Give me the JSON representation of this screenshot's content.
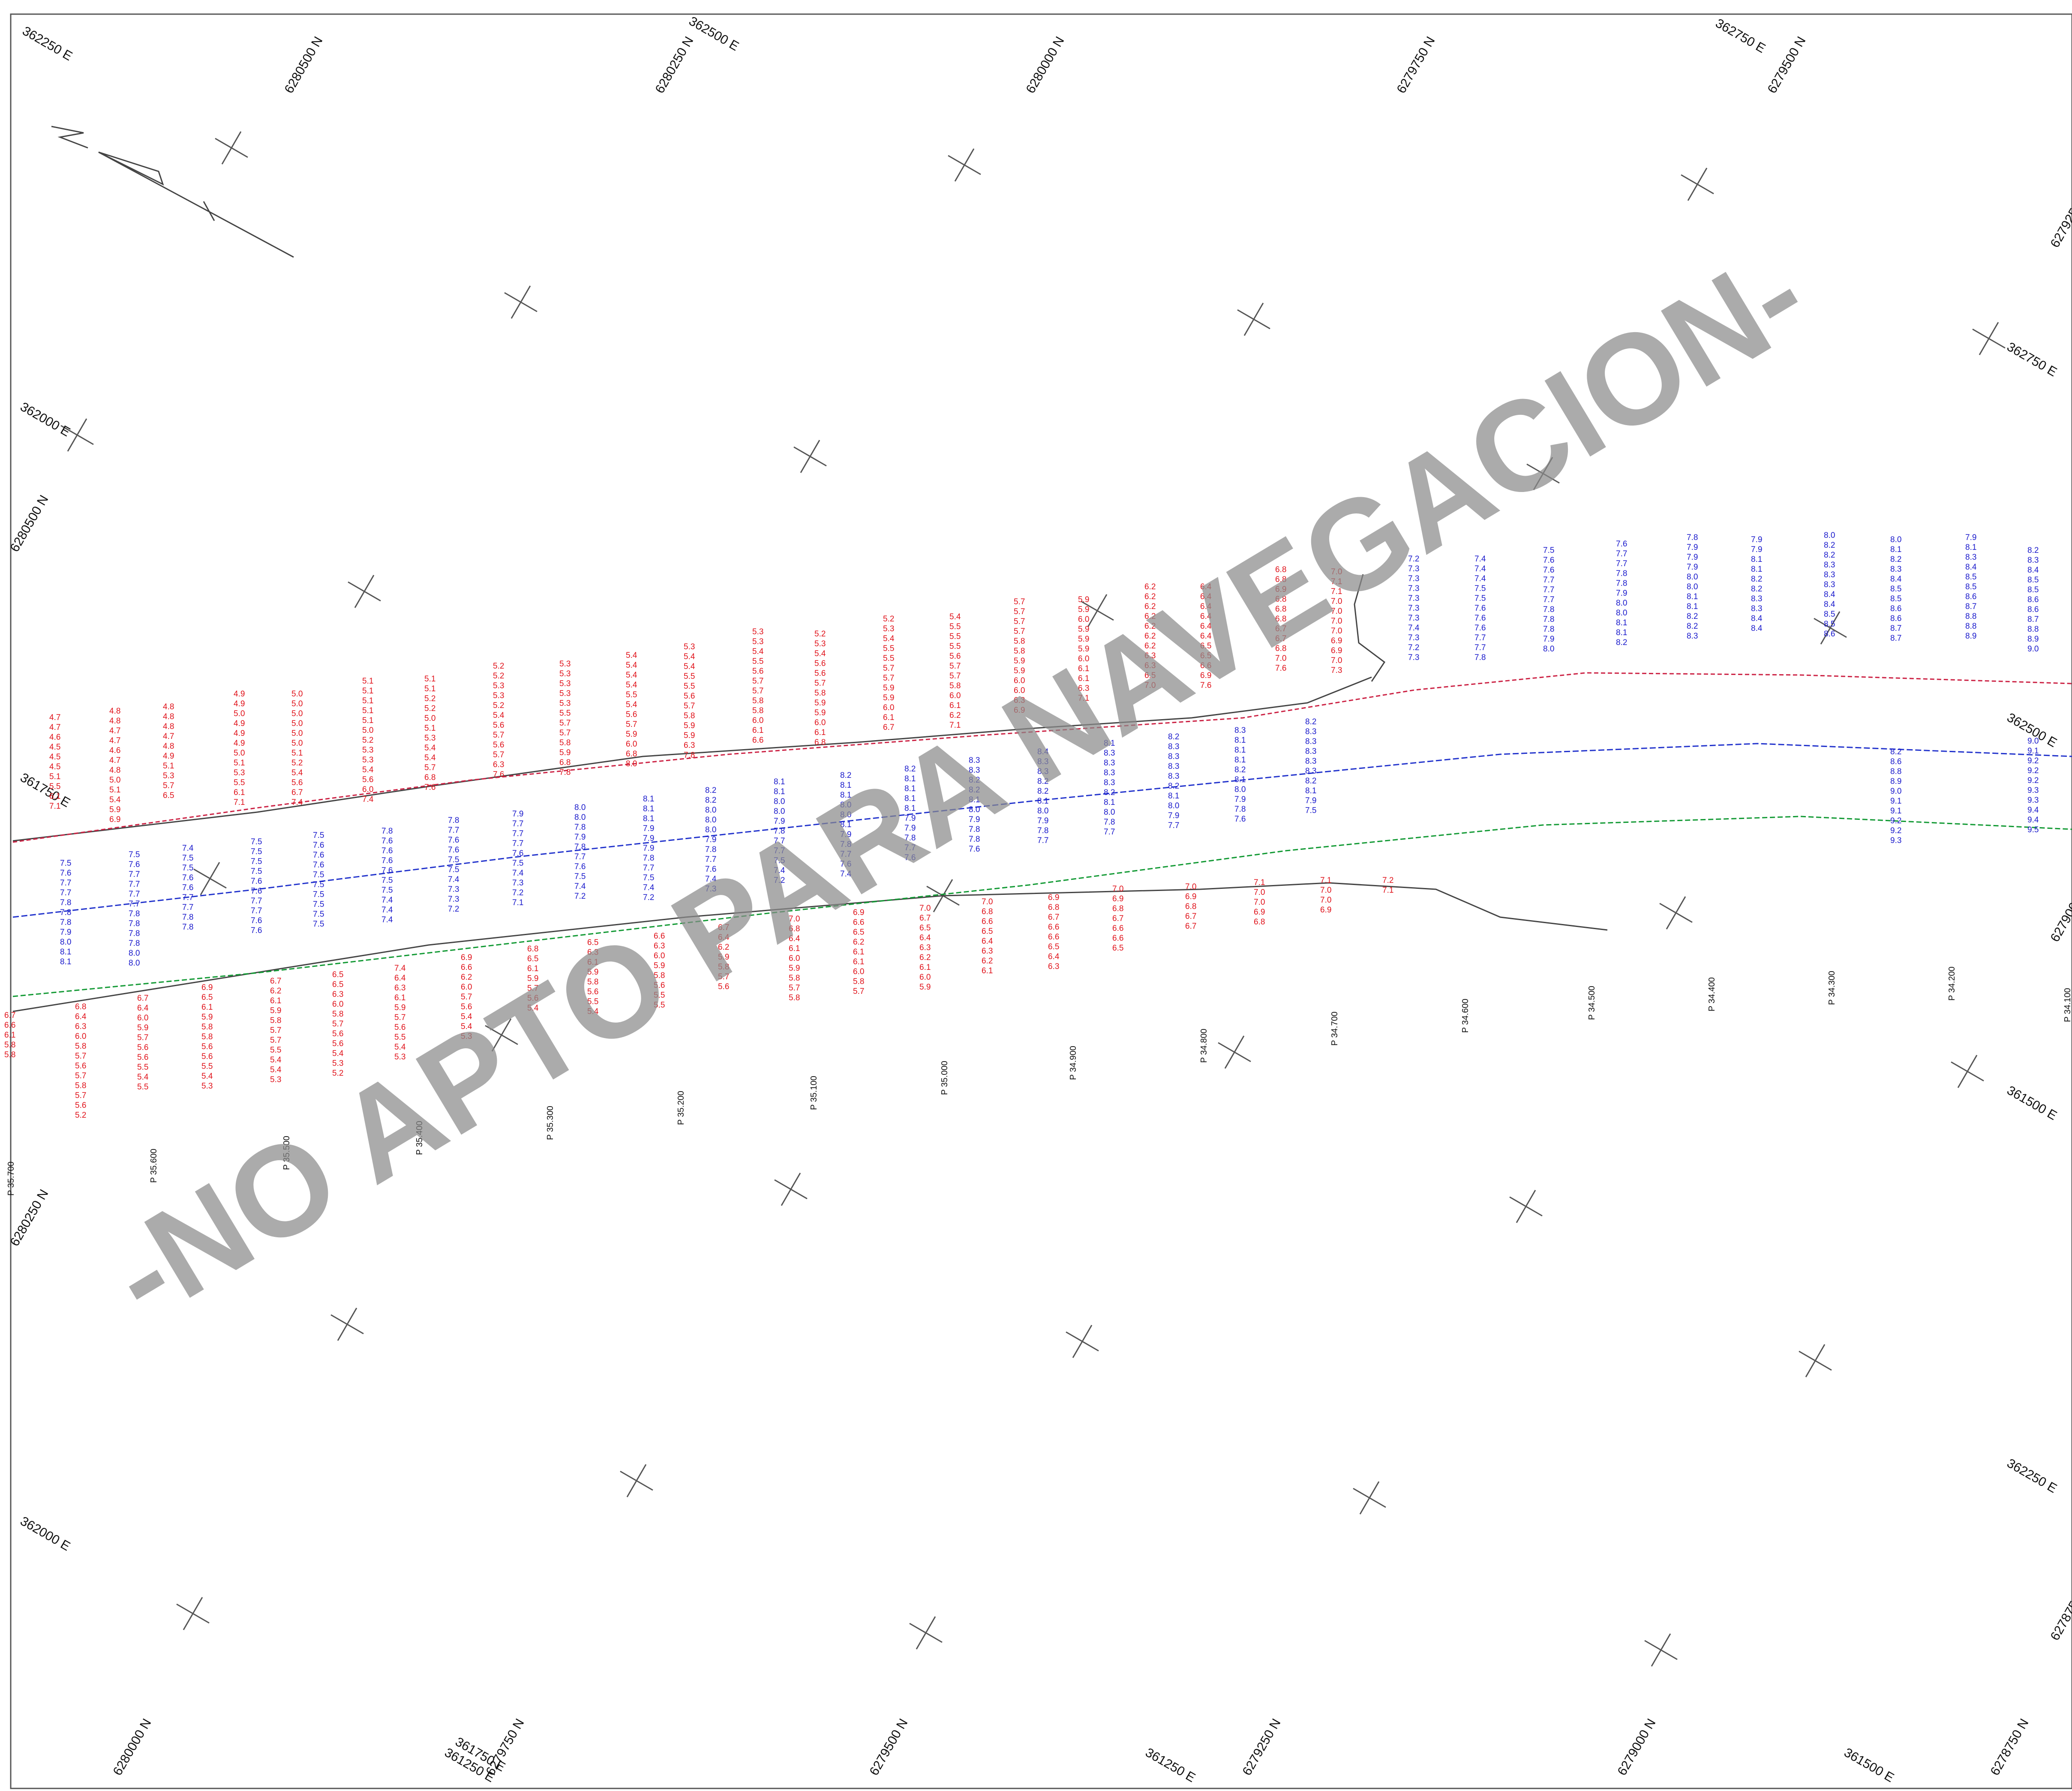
{
  "grid_labels": {
    "easting": [
      "362250 E",
      "362500 E",
      "362750 E",
      "362000 E",
      "362750 E",
      "361750 E",
      "362500 E",
      "361500 E",
      "362250 E",
      "362000 E",
      "361250 E",
      "361250 E",
      "361500 E",
      "361750 E"
    ],
    "northing": [
      "6280500 N",
      "6280250 N",
      "6280000 N",
      "6279750 N",
      "6279500 N",
      "6279250 N",
      "6280500 N",
      "6280250 N",
      "6279000 N",
      "6278750 N",
      "6280000 N",
      "6279750 N",
      "6279500 N",
      "6279250 N",
      "6279000 N",
      "6278750 N"
    ]
  },
  "pk_labels": [
    "P 35.700",
    "P 35.600",
    "P 35.500",
    "P 35.400",
    "P 35.300",
    "P 35.200",
    "P 35.100",
    "P 35.000",
    "P 34.900",
    "P 34.800",
    "P 34.700",
    "P 34.600",
    "P 34.500",
    "P 34.400",
    "P 34.300",
    "P 34.200",
    "P 34.100"
  ],
  "soundings": {
    "red_columns": [
      [
        "4.7",
        "4.7",
        "4.6",
        "4.5",
        "4.5",
        "4.5",
        "5.1",
        "5.5",
        "6.1",
        "7.1"
      ],
      [
        "4.8",
        "4.8",
        "4.7",
        "4.7",
        "4.6",
        "4.7",
        "4.8",
        "5.0",
        "5.1",
        "5.4",
        "5.9",
        "6.9"
      ],
      [
        "4.8",
        "4.8",
        "4.8",
        "4.7",
        "4.8",
        "4.9",
        "5.1",
        "5.3",
        "5.7",
        "6.5"
      ],
      [
        "4.9",
        "4.9",
        "5.0",
        "4.9",
        "4.9",
        "4.9",
        "5.0",
        "5.1",
        "5.3",
        "5.5",
        "6.1",
        "7.1"
      ],
      [
        "5.0",
        "5.0",
        "5.0",
        "5.0",
        "5.0",
        "5.0",
        "5.1",
        "5.2",
        "5.4",
        "5.6",
        "6.7",
        "7.4"
      ],
      [
        "5.1",
        "5.1",
        "5.1",
        "5.1",
        "5.1",
        "5.0",
        "5.2",
        "5.3",
        "5.3",
        "5.4",
        "5.6",
        "6.0",
        "7.4"
      ],
      [
        "5.1",
        "5.1",
        "5.2",
        "5.2",
        "5.0",
        "5.1",
        "5.3",
        "5.4",
        "5.4",
        "5.7",
        "6.8",
        "7.6"
      ],
      [
        "5.2",
        "5.2",
        "5.3",
        "5.3",
        "5.2",
        "5.4",
        "5.6",
        "5.7",
        "5.6",
        "5.7",
        "6.3",
        "7.6"
      ],
      [
        "5.3",
        "5.3",
        "5.3",
        "5.3",
        "5.3",
        "5.5",
        "5.7",
        "5.7",
        "5.8",
        "5.9",
        "6.8",
        "7.8"
      ],
      [
        "5.4",
        "5.4",
        "5.4",
        "5.4",
        "5.5",
        "5.4",
        "5.6",
        "5.7",
        "5.9",
        "6.0",
        "6.8",
        "8.0"
      ],
      [
        "5.3",
        "5.4",
        "5.4",
        "5.5",
        "5.5",
        "5.6",
        "5.7",
        "5.8",
        "5.9",
        "5.9",
        "6.3",
        "7.8"
      ],
      [
        "5.3",
        "5.3",
        "5.4",
        "5.5",
        "5.6",
        "5.7",
        "5.7",
        "5.8",
        "5.8",
        "6.0",
        "6.1",
        "6.6"
      ],
      [
        "5.2",
        "5.3",
        "5.4",
        "5.6",
        "5.6",
        "5.7",
        "5.8",
        "5.9",
        "5.9",
        "6.0",
        "6.1",
        "6.8"
      ],
      [
        "5.2",
        "5.3",
        "5.4",
        "5.5",
        "5.5",
        "5.7",
        "5.7",
        "5.9",
        "5.9",
        "6.0",
        "6.1",
        "6.7"
      ],
      [
        "5.4",
        "5.5",
        "5.5",
        "5.5",
        "5.6",
        "5.7",
        "5.7",
        "5.8",
        "6.0",
        "6.1",
        "6.2",
        "7.1"
      ],
      [
        "5.7",
        "5.7",
        "5.7",
        "5.7",
        "5.8",
        "5.8",
        "5.9",
        "5.9",
        "6.0",
        "6.0",
        "6.3",
        "6.9"
      ],
      [
        "5.9",
        "5.9",
        "6.0",
        "5.9",
        "5.9",
        "5.9",
        "6.0",
        "6.1",
        "6.1",
        "6.3",
        "7.1"
      ],
      [
        "6.2",
        "6.2",
        "6.2",
        "6.2",
        "6.2",
        "6.2",
        "6.2",
        "6.3",
        "6.3",
        "6.5",
        "7.0"
      ],
      [
        "6.4",
        "6.4",
        "6.4",
        "6.4",
        "6.4",
        "6.4",
        "6.5",
        "6.5",
        "6.6",
        "6.9",
        "7.6"
      ],
      [
        "6.8",
        "6.8",
        "6.9",
        "6.8",
        "6.8",
        "6.8",
        "6.7",
        "6.7",
        "6.8",
        "7.0",
        "7.6"
      ],
      [
        "7.0",
        "7.1",
        "7.1",
        "7.0",
        "7.0",
        "7.0",
        "7.0",
        "6.9",
        "6.9",
        "7.0",
        "7.3"
      ],
      [
        "6.7",
        "6.6",
        "6.1",
        "5.8",
        "5.8"
      ],
      [
        "6.8",
        "6.4",
        "6.3",
        "6.0",
        "5.8",
        "5.7",
        "5.6",
        "5.7",
        "5.8",
        "5.7",
        "5.6",
        "5.2"
      ],
      [
        "6.7",
        "6.4",
        "6.0",
        "5.9",
        "5.7",
        "5.6",
        "5.6",
        "5.5",
        "5.4",
        "5.5"
      ],
      [
        "6.9",
        "6.5",
        "6.1",
        "5.9",
        "5.8",
        "5.8",
        "5.6",
        "5.6",
        "5.5",
        "5.4",
        "5.3"
      ],
      [
        "6.7",
        "6.2",
        "6.1",
        "5.9",
        "5.8",
        "5.7",
        "5.7",
        "5.5",
        "5.4",
        "5.4",
        "5.3"
      ],
      [
        "6.5",
        "6.5",
        "6.3",
        "6.0",
        "5.8",
        "5.7",
        "5.6",
        "5.6",
        "5.4",
        "5.3",
        "5.2"
      ],
      [
        "7.4",
        "6.4",
        "6.3",
        "6.1",
        "5.9",
        "5.7",
        "5.6",
        "5.5",
        "5.4",
        "5.3"
      ],
      [
        "6.9",
        "6.6",
        "6.2",
        "6.0",
        "5.7",
        "5.6",
        "5.4",
        "5.4",
        "5.3"
      ],
      [
        "6.8",
        "6.5",
        "6.1",
        "5.9",
        "5.7",
        "5.6",
        "5.4"
      ],
      [
        "6.5",
        "6.3",
        "6.1",
        "5.9",
        "5.8",
        "5.6",
        "5.5",
        "5.4"
      ],
      [
        "6.6",
        "6.3",
        "6.0",
        "5.9",
        "5.8",
        "5.6",
        "5.5",
        "5.5"
      ],
      [
        "6.7",
        "6.4",
        "6.2",
        "5.9",
        "5.8",
        "5.7",
        "5.6"
      ],
      [
        "7.0",
        "6.8",
        "6.4",
        "6.1",
        "6.0",
        "5.9",
        "5.8",
        "5.7",
        "5.8"
      ],
      [
        "6.9",
        "6.6",
        "6.5",
        "6.2",
        "6.1",
        "6.1",
        "6.0",
        "5.8",
        "5.7"
      ],
      [
        "7.0",
        "6.7",
        "6.5",
        "6.4",
        "6.3",
        "6.2",
        "6.1",
        "6.0",
        "5.9"
      ],
      [
        "7.0",
        "6.8",
        "6.6",
        "6.5",
        "6.4",
        "6.3",
        "6.2",
        "6.1"
      ],
      [
        "6.9",
        "6.8",
        "6.7",
        "6.6",
        "6.6",
        "6.5",
        "6.4",
        "6.3"
      ],
      [
        "7.0",
        "6.9",
        "6.8",
        "6.7",
        "6.6",
        "6.6",
        "6.5"
      ],
      [
        "7.0",
        "6.9",
        "6.8",
        "6.7",
        "6.7"
      ],
      [
        "7.1",
        "7.0",
        "7.0",
        "6.9",
        "6.8"
      ],
      [
        "7.1",
        "7.0",
        "7.0",
        "6.9"
      ],
      [
        "7.2",
        "7.1"
      ]
    ],
    "blue_columns": [
      [
        "7.5",
        "7.6",
        "7.7",
        "7.7",
        "7.8",
        "7.8",
        "7.8",
        "7.9",
        "8.0",
        "8.1",
        "8.1"
      ],
      [
        "7.5",
        "7.6",
        "7.7",
        "7.7",
        "7.7",
        "7.7",
        "7.8",
        "7.8",
        "7.8",
        "7.8",
        "8.0",
        "8.0"
      ],
      [
        "7.4",
        "7.5",
        "7.5",
        "7.6",
        "7.6",
        "7.7",
        "7.7",
        "7.8",
        "7.8"
      ],
      [
        "7.5",
        "7.5",
        "7.5",
        "7.5",
        "7.6",
        "7.6",
        "7.7",
        "7.7",
        "7.6",
        "7.6"
      ],
      [
        "7.5",
        "7.6",
        "7.6",
        "7.6",
        "7.5",
        "7.5",
        "7.5",
        "7.5",
        "7.5",
        "7.5"
      ],
      [
        "7.8",
        "7.6",
        "7.6",
        "7.6",
        "7.6",
        "7.5",
        "7.5",
        "7.4",
        "7.4",
        "7.4"
      ],
      [
        "7.8",
        "7.7",
        "7.6",
        "7.6",
        "7.5",
        "7.5",
        "7.4",
        "7.3",
        "7.3",
        "7.2"
      ],
      [
        "7.9",
        "7.7",
        "7.7",
        "7.7",
        "7.6",
        "7.5",
        "7.4",
        "7.3",
        "7.2",
        "7.1"
      ],
      [
        "8.0",
        "8.0",
        "7.8",
        "7.9",
        "7.8",
        "7.7",
        "7.6",
        "7.5",
        "7.4",
        "7.2"
      ],
      [
        "8.1",
        "8.1",
        "8.1",
        "7.9",
        "7.9",
        "7.9",
        "7.8",
        "7.7",
        "7.5",
        "7.4",
        "7.2"
      ],
      [
        "8.2",
        "8.2",
        "8.0",
        "8.0",
        "8.0",
        "7.9",
        "7.8",
        "7.7",
        "7.6",
        "7.4",
        "7.3"
      ],
      [
        "8.1",
        "8.1",
        "8.0",
        "8.0",
        "7.9",
        "7.8",
        "7.7",
        "7.7",
        "7.5",
        "7.4",
        "7.2"
      ],
      [
        "8.2",
        "8.1",
        "8.1",
        "8.0",
        "8.0",
        "8.1",
        "7.9",
        "7.8",
        "7.7",
        "7.6",
        "7.4"
      ],
      [
        "8.2",
        "8.1",
        "8.1",
        "8.1",
        "8.1",
        "7.9",
        "7.9",
        "7.8",
        "7.7",
        "7.6"
      ],
      [
        "8.3",
        "8.3",
        "8.2",
        "8.2",
        "8.1",
        "8.0",
        "7.9",
        "7.8",
        "7.8",
        "7.6"
      ],
      [
        "8.4",
        "8.3",
        "8.3",
        "8.2",
        "8.2",
        "8.1",
        "8.0",
        "7.9",
        "7.8",
        "7.7"
      ],
      [
        "8.1",
        "8.3",
        "8.3",
        "8.3",
        "8.3",
        "8.2",
        "8.1",
        "8.0",
        "7.8",
        "7.7"
      ],
      [
        "8.2",
        "8.3",
        "8.3",
        "8.3",
        "8.3",
        "8.2",
        "8.1",
        "8.0",
        "7.9",
        "7.7"
      ],
      [
        "8.3",
        "8.1",
        "8.1",
        "8.1",
        "8.2",
        "8.1",
        "8.0",
        "7.9",
        "7.8",
        "7.6"
      ],
      [
        "8.2",
        "8.3",
        "8.3",
        "8.3",
        "8.3",
        "8.3",
        "8.2",
        "8.1",
        "7.9",
        "7.5"
      ],
      [
        "7.2",
        "7.3",
        "7.3",
        "7.3",
        "7.3",
        "7.3",
        "7.3",
        "7.4",
        "7.3",
        "7.2",
        "7.3"
      ],
      [
        "7.4",
        "7.4",
        "7.4",
        "7.5",
        "7.5",
        "7.6",
        "7.6",
        "7.6",
        "7.7",
        "7.7",
        "7.8"
      ],
      [
        "7.5",
        "7.6",
        "7.6",
        "7.7",
        "7.7",
        "7.7",
        "7.8",
        "7.8",
        "7.8",
        "7.9",
        "8.0"
      ],
      [
        "7.6",
        "7.7",
        "7.7",
        "7.8",
        "7.8",
        "7.9",
        "8.0",
        "8.0",
        "8.1",
        "8.1",
        "8.2"
      ],
      [
        "7.8",
        "7.9",
        "7.9",
        "7.9",
        "8.0",
        "8.0",
        "8.1",
        "8.1",
        "8.2",
        "8.2",
        "8.3"
      ],
      [
        "7.9",
        "7.9",
        "8.1",
        "8.1",
        "8.2",
        "8.2",
        "8.3",
        "8.3",
        "8.4",
        "8.4"
      ],
      [
        "8.0",
        "8.2",
        "8.2",
        "8.3",
        "8.3",
        "8.3",
        "8.4",
        "8.4",
        "8.5",
        "8.5",
        "8.6"
      ],
      [
        "8.0",
        "8.1",
        "8.2",
        "8.3",
        "8.4",
        "8.5",
        "8.5",
        "8.6",
        "8.6",
        "8.7",
        "8.7"
      ],
      [
        "7.9",
        "8.1",
        "8.3",
        "8.4",
        "8.5",
        "8.5",
        "8.6",
        "8.7",
        "8.8",
        "8.8",
        "8.9"
      ],
      [
        "8.2",
        "8.3",
        "8.4",
        "8.5",
        "8.5",
        "8.6",
        "8.6",
        "8.7",
        "8.8",
        "8.9",
        "9.0"
      ],
      [
        "8.2",
        "8.6",
        "8.8",
        "8.9",
        "9.0",
        "9.1",
        "9.1",
        "9.2",
        "9.2",
        "9.3"
      ],
      [
        "9.0",
        "9.1",
        "9.2",
        "9.2",
        "9.2",
        "9.3",
        "9.3",
        "9.4",
        "9.4",
        "9.5"
      ]
    ]
  }
}
